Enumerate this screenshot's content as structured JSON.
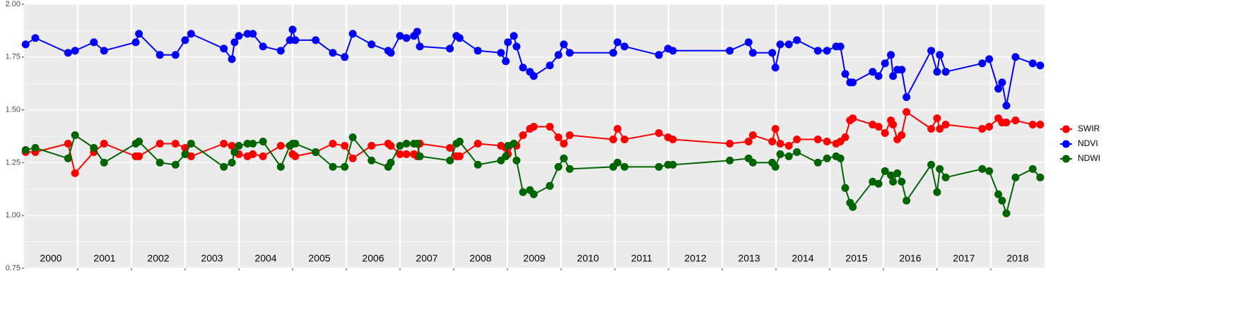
{
  "chart_data": {
    "type": "line",
    "x": [
      2000.03,
      2000.21,
      2000.82,
      2000.95,
      2001.3,
      2001.49,
      2002.08,
      2002.14,
      2002.53,
      2002.82,
      2003.0,
      2003.11,
      2003.72,
      2003.87,
      2003.92,
      2004.0,
      2004.16,
      2004.26,
      2004.45,
      2004.78,
      2004.95,
      2005.0,
      2005.05,
      2005.43,
      2005.75,
      2005.97,
      2006.12,
      2006.47,
      2006.78,
      2006.83,
      2007.0,
      2007.12,
      2007.26,
      2007.32,
      2007.37,
      2007.93,
      2008.05,
      2008.11,
      2008.45,
      2008.88,
      2008.97,
      2009.01,
      2009.12,
      2009.17,
      2009.29,
      2009.42,
      2009.49,
      2009.79,
      2009.95,
      2010.05,
      2010.16,
      2010.97,
      2011.05,
      2011.18,
      2011.82,
      2011.99,
      2012.08,
      2013.14,
      2013.49,
      2013.57,
      2013.93,
      2013.99,
      2014.08,
      2014.24,
      2014.39,
      2014.78,
      2014.95,
      2015.12,
      2015.2,
      2015.29,
      2015.38,
      2015.43,
      2015.8,
      2015.91,
      2016.03,
      2016.14,
      2016.18,
      2016.26,
      2016.34,
      2016.43,
      2016.89,
      2017.0,
      2017.05,
      2017.16,
      2017.84,
      2017.97,
      2018.14,
      2018.21,
      2018.29,
      2018.46,
      2018.78,
      2018.92
    ],
    "series": [
      {
        "name": "SWIR",
        "color": "#ff0000",
        "values": [
          1.3,
          1.3,
          1.34,
          1.2,
          1.3,
          1.34,
          1.28,
          1.28,
          1.34,
          1.34,
          1.32,
          1.28,
          1.34,
          1.33,
          1.3,
          1.29,
          1.28,
          1.29,
          1.28,
          1.33,
          1.33,
          1.29,
          1.28,
          1.3,
          1.34,
          1.33,
          1.27,
          1.33,
          1.34,
          1.33,
          1.29,
          1.29,
          1.29,
          1.28,
          1.34,
          1.32,
          1.28,
          1.28,
          1.34,
          1.33,
          1.32,
          1.29,
          1.34,
          1.33,
          1.38,
          1.41,
          1.42,
          1.42,
          1.37,
          1.34,
          1.38,
          1.36,
          1.41,
          1.36,
          1.39,
          1.37,
          1.36,
          1.34,
          1.35,
          1.38,
          1.35,
          1.41,
          1.34,
          1.33,
          1.36,
          1.36,
          1.35,
          1.34,
          1.35,
          1.37,
          1.45,
          1.46,
          1.43,
          1.42,
          1.39,
          1.45,
          1.43,
          1.36,
          1.38,
          1.49,
          1.41,
          1.46,
          1.41,
          1.43,
          1.41,
          1.42,
          1.46,
          1.44,
          1.44,
          1.45,
          1.43,
          1.43
        ]
      },
      {
        "name": "NDVI",
        "color": "#0000ff",
        "values": [
          1.81,
          1.84,
          1.77,
          1.78,
          1.82,
          1.78,
          1.82,
          1.86,
          1.76,
          1.76,
          1.83,
          1.86,
          1.79,
          1.74,
          1.82,
          1.85,
          1.86,
          1.86,
          1.8,
          1.78,
          1.83,
          1.88,
          1.83,
          1.83,
          1.77,
          1.75,
          1.86,
          1.81,
          1.78,
          1.77,
          1.85,
          1.84,
          1.85,
          1.87,
          1.8,
          1.79,
          1.85,
          1.84,
          1.78,
          1.77,
          1.73,
          1.82,
          1.85,
          1.8,
          1.7,
          1.68,
          1.66,
          1.71,
          1.76,
          1.81,
          1.77,
          1.77,
          1.82,
          1.8,
          1.76,
          1.79,
          1.78,
          1.78,
          1.82,
          1.77,
          1.77,
          1.7,
          1.81,
          1.81,
          1.83,
          1.78,
          1.78,
          1.8,
          1.8,
          1.67,
          1.63,
          1.63,
          1.68,
          1.66,
          1.72,
          1.76,
          1.66,
          1.69,
          1.69,
          1.56,
          1.78,
          1.68,
          1.76,
          1.68,
          1.72,
          1.74,
          1.6,
          1.63,
          1.52,
          1.75,
          1.72,
          1.71
        ]
      },
      {
        "name": "NDWI",
        "color": "#006400",
        "values": [
          1.31,
          1.32,
          1.27,
          1.38,
          1.32,
          1.25,
          1.34,
          1.35,
          1.25,
          1.24,
          1.29,
          1.34,
          1.23,
          1.25,
          1.3,
          1.33,
          1.34,
          1.34,
          1.35,
          1.23,
          1.33,
          1.34,
          1.34,
          1.3,
          1.23,
          1.23,
          1.37,
          1.26,
          1.23,
          1.25,
          1.33,
          1.34,
          1.34,
          1.34,
          1.28,
          1.26,
          1.34,
          1.35,
          1.24,
          1.26,
          1.28,
          1.33,
          1.34,
          1.26,
          1.11,
          1.12,
          1.1,
          1.14,
          1.23,
          1.27,
          1.22,
          1.23,
          1.25,
          1.23,
          1.23,
          1.24,
          1.24,
          1.26,
          1.27,
          1.25,
          1.25,
          1.23,
          1.29,
          1.28,
          1.3,
          1.25,
          1.27,
          1.28,
          1.27,
          1.13,
          1.06,
          1.04,
          1.16,
          1.15,
          1.21,
          1.19,
          1.16,
          1.2,
          1.16,
          1.07,
          1.24,
          1.11,
          1.22,
          1.18,
          1.22,
          1.21,
          1.1,
          1.07,
          1.01,
          1.18,
          1.22,
          1.18
        ]
      }
    ],
    "xlim": [
      2000,
      2019
    ],
    "xticks": [
      2001,
      2002,
      2003,
      2004,
      2005,
      2006,
      2007,
      2008,
      2009,
      2010,
      2011,
      2012,
      2013,
      2014,
      2015,
      2016,
      2017,
      2018
    ],
    "year_labels": [
      "2000",
      "2001",
      "2002",
      "2003",
      "2004",
      "2005",
      "2006",
      "2007",
      "2008",
      "2009",
      "2010",
      "2011",
      "2012",
      "2013",
      "2014",
      "2015",
      "2016",
      "2017",
      "2018"
    ],
    "ylim": [
      0.75,
      2.0
    ],
    "yticks": [
      {
        "value": 0.75,
        "label": "0.75"
      },
      {
        "value": 1.0,
        "label": "1.00"
      },
      {
        "value": 1.25,
        "label": "1.25"
      },
      {
        "value": 1.5,
        "label": "1.50"
      },
      {
        "value": 1.75,
        "label": "1.75"
      },
      {
        "value": 2.0,
        "label": "2.00"
      }
    ],
    "grid": true,
    "legend": "right"
  }
}
